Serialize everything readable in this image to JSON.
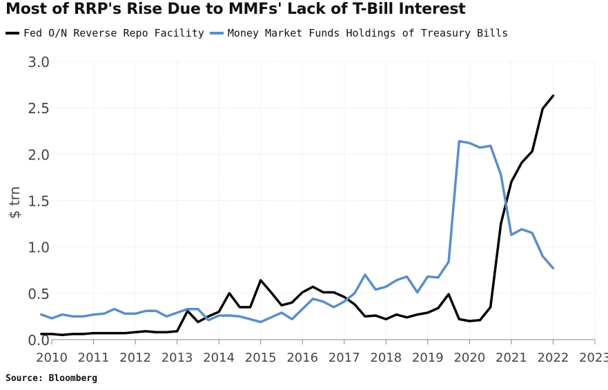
{
  "chart_data": {
    "type": "line",
    "title": "Most of RRP's Rise Due to MMFs' Lack of T-Bill Interest",
    "ylabel": "$ trn",
    "ylim": [
      0,
      3.0
    ],
    "xlim": [
      2010,
      2023
    ],
    "y_ticks": [
      "0.0",
      "0.5",
      "1.0",
      "1.5",
      "2.0",
      "2.5",
      "3.0"
    ],
    "x_ticks": [
      "2010",
      "2011",
      "2012",
      "2013",
      "2014",
      "2015",
      "2016",
      "2017",
      "2018",
      "2019",
      "2020",
      "2021",
      "2022",
      "2023"
    ],
    "grid": true,
    "legend_position": "top-left",
    "source": "Source: Bloomberg",
    "series": [
      {
        "name": "Fed O/N Reverse Repo Facility",
        "color": "#000000",
        "points": [
          [
            2009.75,
            0.06
          ],
          [
            2010.0,
            0.06
          ],
          [
            2010.25,
            0.05
          ],
          [
            2010.5,
            0.06
          ],
          [
            2010.75,
            0.06
          ],
          [
            2011.0,
            0.07
          ],
          [
            2011.25,
            0.07
          ],
          [
            2011.5,
            0.07
          ],
          [
            2011.75,
            0.07
          ],
          [
            2012.0,
            0.08
          ],
          [
            2012.25,
            0.09
          ],
          [
            2012.5,
            0.08
          ],
          [
            2012.75,
            0.08
          ],
          [
            2013.0,
            0.09
          ],
          [
            2013.25,
            0.31
          ],
          [
            2013.5,
            0.19
          ],
          [
            2013.75,
            0.25
          ],
          [
            2014.0,
            0.3
          ],
          [
            2014.25,
            0.5
          ],
          [
            2014.5,
            0.35
          ],
          [
            2014.75,
            0.35
          ],
          [
            2015.0,
            0.64
          ],
          [
            2015.25,
            0.51
          ],
          [
            2015.5,
            0.37
          ],
          [
            2015.75,
            0.4
          ],
          [
            2016.0,
            0.51
          ],
          [
            2016.25,
            0.57
          ],
          [
            2016.5,
            0.51
          ],
          [
            2016.75,
            0.51
          ],
          [
            2017.0,
            0.46
          ],
          [
            2017.25,
            0.38
          ],
          [
            2017.5,
            0.25
          ],
          [
            2017.75,
            0.26
          ],
          [
            2018.0,
            0.22
          ],
          [
            2018.25,
            0.27
          ],
          [
            2018.5,
            0.24
          ],
          [
            2018.75,
            0.27
          ],
          [
            2019.0,
            0.29
          ],
          [
            2019.25,
            0.34
          ],
          [
            2019.5,
            0.49
          ],
          [
            2019.75,
            0.22
          ],
          [
            2020.0,
            0.2
          ],
          [
            2020.25,
            0.21
          ],
          [
            2020.5,
            0.35
          ],
          [
            2020.75,
            1.25
          ],
          [
            2021.0,
            1.7
          ],
          [
            2021.25,
            1.91
          ],
          [
            2021.5,
            2.03
          ],
          [
            2021.75,
            2.49
          ],
          [
            2022.0,
            2.63
          ]
        ]
      },
      {
        "name": "Money Market Funds Holdings of Treasury Bills",
        "color": "#5a8ec9",
        "points": [
          [
            2009.75,
            0.27
          ],
          [
            2010.0,
            0.23
          ],
          [
            2010.25,
            0.27
          ],
          [
            2010.5,
            0.25
          ],
          [
            2010.75,
            0.25
          ],
          [
            2011.0,
            0.27
          ],
          [
            2011.25,
            0.28
          ],
          [
            2011.5,
            0.33
          ],
          [
            2011.75,
            0.28
          ],
          [
            2012.0,
            0.28
          ],
          [
            2012.25,
            0.31
          ],
          [
            2012.5,
            0.31
          ],
          [
            2012.75,
            0.25
          ],
          [
            2013.0,
            0.29
          ],
          [
            2013.25,
            0.33
          ],
          [
            2013.5,
            0.33
          ],
          [
            2013.75,
            0.21
          ],
          [
            2014.0,
            0.26
          ],
          [
            2014.25,
            0.26
          ],
          [
            2014.5,
            0.25
          ],
          [
            2014.75,
            0.22
          ],
          [
            2015.0,
            0.19
          ],
          [
            2015.25,
            0.24
          ],
          [
            2015.5,
            0.29
          ],
          [
            2015.75,
            0.22
          ],
          [
            2016.0,
            0.33
          ],
          [
            2016.25,
            0.44
          ],
          [
            2016.5,
            0.41
          ],
          [
            2016.75,
            0.35
          ],
          [
            2017.0,
            0.41
          ],
          [
            2017.25,
            0.5
          ],
          [
            2017.5,
            0.7
          ],
          [
            2017.75,
            0.54
          ],
          [
            2018.0,
            0.57
          ],
          [
            2018.25,
            0.64
          ],
          [
            2018.5,
            0.68
          ],
          [
            2018.75,
            0.51
          ],
          [
            2019.0,
            0.68
          ],
          [
            2019.25,
            0.67
          ],
          [
            2019.5,
            0.84
          ],
          [
            2019.75,
            2.14
          ],
          [
            2020.0,
            2.12
          ],
          [
            2020.25,
            2.07
          ],
          [
            2020.5,
            2.09
          ],
          [
            2020.75,
            1.78
          ],
          [
            2021.0,
            1.13
          ],
          [
            2021.25,
            1.19
          ],
          [
            2021.5,
            1.15
          ],
          [
            2021.75,
            0.9
          ],
          [
            2022.0,
            0.77
          ]
        ]
      }
    ]
  }
}
